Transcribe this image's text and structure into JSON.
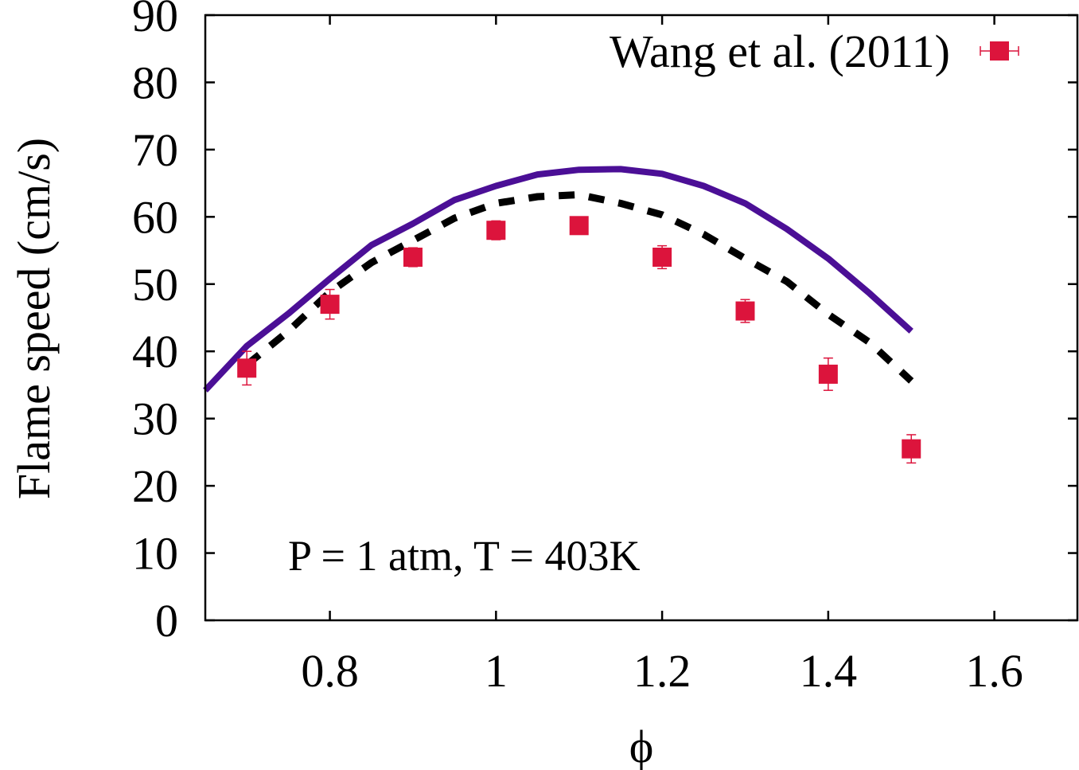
{
  "chart_data": {
    "type": "line",
    "title": "",
    "xlabel": "ϕ",
    "ylabel": "Flame speed (cm/s)",
    "xlim": [
      0.65,
      1.7
    ],
    "ylim": [
      0,
      90
    ],
    "xticks": [
      0.8,
      1.0,
      1.2,
      1.4,
      1.6
    ],
    "xtick_labels": [
      "0.8",
      "1",
      "1.2",
      "1.4",
      "1.6"
    ],
    "yticks": [
      0,
      10,
      20,
      30,
      40,
      50,
      60,
      70,
      80,
      90
    ],
    "ytick_labels": [
      "0",
      "10",
      "20",
      "30",
      "40",
      "50",
      "60",
      "70",
      "80",
      "90"
    ],
    "grid": false,
    "legend_position": "top-right",
    "annotation": "P = 1 atm, T = 403K",
    "series": [
      {
        "kind": "line",
        "style": "solid",
        "color": "#4b0f96",
        "x": [
          0.65,
          0.7,
          0.75,
          0.8,
          0.85,
          0.9,
          0.95,
          1.0,
          1.05,
          1.1,
          1.15,
          1.2,
          1.25,
          1.3,
          1.35,
          1.4,
          1.45,
          1.5
        ],
        "y": [
          34.2,
          40.8,
          45.6,
          50.8,
          55.8,
          59.0,
          62.5,
          64.6,
          66.3,
          67.0,
          67.1,
          66.4,
          64.6,
          62.0,
          58.2,
          53.8,
          48.6,
          43.0
        ]
      },
      {
        "kind": "line",
        "style": "dashed",
        "color": "#000000",
        "x": [
          0.7,
          0.75,
          0.8,
          0.85,
          0.9,
          0.95,
          1.0,
          1.05,
          1.1,
          1.15,
          1.2,
          1.25,
          1.3,
          1.35,
          1.4,
          1.45,
          1.5
        ],
        "y": [
          38.0,
          43.0,
          48.8,
          53.2,
          56.5,
          59.8,
          62.0,
          63.0,
          63.3,
          62.0,
          60.3,
          57.4,
          53.8,
          50.4,
          45.5,
          41.3,
          35.6
        ]
      },
      {
        "kind": "errorbar",
        "name": "Wang et al. (2011)",
        "color": "#dc143c",
        "x": [
          0.7,
          0.8,
          0.9,
          1.0,
          1.1,
          1.2,
          1.3,
          1.4,
          1.5
        ],
        "y": [
          37.5,
          47.0,
          54.0,
          58.0,
          58.7,
          54.0,
          46.0,
          36.6,
          25.5
        ],
        "yerr": [
          2.5,
          2.2,
          1.4,
          1.4,
          1.2,
          1.7,
          1.7,
          2.4,
          2.1
        ]
      }
    ]
  }
}
